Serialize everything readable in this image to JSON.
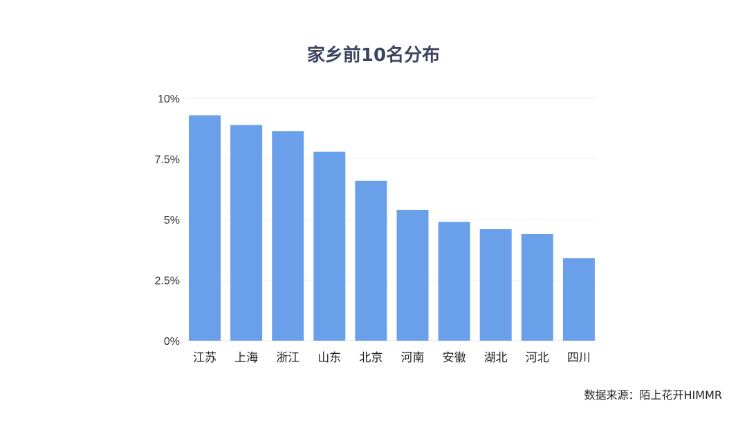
{
  "chart_data": {
    "type": "bar",
    "title": "家乡前10名分布",
    "categories": [
      "江苏",
      "上海",
      "浙江",
      "山东",
      "北京",
      "河南",
      "安徽",
      "湖北",
      "河北",
      "四川"
    ],
    "values": [
      9.3,
      8.9,
      8.65,
      7.8,
      6.6,
      5.4,
      4.9,
      4.6,
      4.4,
      3.4
    ],
    "value_unit": "%",
    "yticks": [
      "0%",
      "2.5%",
      "5%",
      "7.5%",
      "10%"
    ],
    "ylim": [
      0,
      10
    ],
    "grid": true,
    "bar_color": "#6a9fe9",
    "xlabel": "",
    "ylabel": ""
  },
  "source": "数据来源：陌上花开HIMMR",
  "colors": {
    "title": "#3d4460",
    "bar": "#6a9fe9"
  }
}
